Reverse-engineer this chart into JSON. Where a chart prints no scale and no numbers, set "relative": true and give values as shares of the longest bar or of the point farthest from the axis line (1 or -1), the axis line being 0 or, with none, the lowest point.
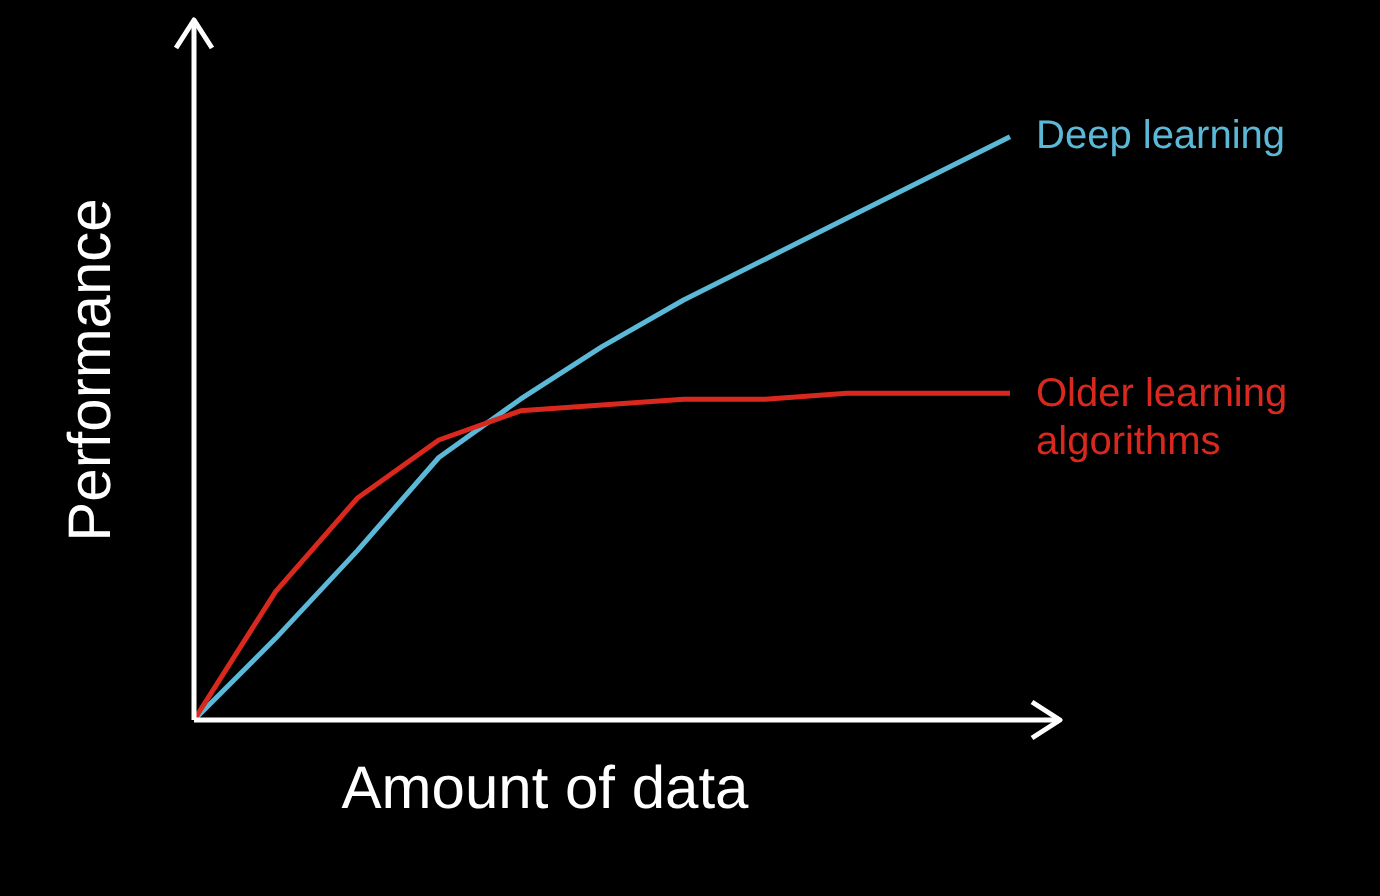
{
  "chart_data": {
    "type": "line",
    "xlabel": "Amount of data",
    "ylabel": "Performance",
    "relative": true,
    "marker": "none",
    "categories": [
      null,
      null,
      null,
      null,
      null,
      null,
      null,
      null,
      null,
      null,
      null
    ],
    "series": [
      {
        "name": "Deep learning",
        "color": "#5bb8d6",
        "values": [
          0,
          0.14,
          0.29,
          0.45,
          0.55,
          0.64,
          0.72,
          0.79,
          0.86,
          0.93,
          1
        ]
      },
      {
        "name": "Older learning algorithms",
        "color": "#d9281e",
        "values": [
          0,
          0.22,
          0.38,
          0.48,
          0.53,
          0.54,
          0.55,
          0.55,
          0.56,
          0.56,
          0.56
        ]
      }
    ]
  }
}
